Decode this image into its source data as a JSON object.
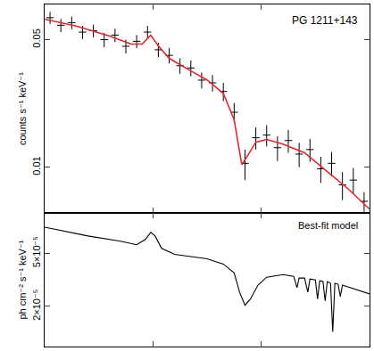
{
  "chart_data": [
    {
      "type": "scatter",
      "log": "y",
      "tick_labels": "y",
      "ylabel": "counts s⁻¹ keV⁻¹",
      "annotations": [
        "PG 1211+143"
      ],
      "xlim": [
        0,
        3
      ],
      "xticks": [
        1,
        2
      ],
      "ylim": [
        0.0056,
        0.078
      ],
      "yticks": [
        0.05,
        0.01
      ],
      "series": [
        {
          "type": "scatter",
          "marker": "cross",
          "color": "#000000",
          "x": [
            0.05,
            0.15,
            0.25,
            0.35,
            0.45,
            0.55,
            0.65,
            0.75,
            0.85,
            0.95,
            1.05,
            1.15,
            1.25,
            1.35,
            1.45,
            1.55,
            1.65,
            1.75,
            1.85,
            1.95,
            2.05,
            2.15,
            2.25,
            2.35,
            2.45,
            2.55,
            2.65,
            2.75,
            2.85,
            2.95
          ],
          "values": [
            0.066,
            0.06,
            0.062,
            0.055,
            0.056,
            0.05,
            0.053,
            0.046,
            0.049,
            0.055,
            0.044,
            0.041,
            0.036,
            0.035,
            0.03,
            0.029,
            0.026,
            0.02,
            0.0105,
            0.0145,
            0.015,
            0.0128,
            0.014,
            0.0118,
            0.0125,
            0.0098,
            0.0105,
            0.008,
            0.0085,
            0.0065
          ],
          "errors": [
            0.005,
            0.005,
            0.005,
            0.0045,
            0.0045,
            0.0045,
            0.0045,
            0.004,
            0.004,
            0.0045,
            0.004,
            0.004,
            0.0035,
            0.0035,
            0.003,
            0.003,
            0.003,
            0.0025,
            0.002,
            0.002,
            0.002,
            0.002,
            0.002,
            0.0018,
            0.0018,
            0.0016,
            0.0016,
            0.0014,
            0.0014,
            0.0008
          ]
        },
        {
          "type": "line",
          "color": "#e8262a",
          "x": [
            0,
            0.3,
            0.6,
            0.8,
            0.9,
            0.98,
            1.05,
            1.15,
            1.35,
            1.5,
            1.65,
            1.75,
            1.82,
            1.86,
            1.95,
            2.05,
            2.2,
            2.4,
            2.6,
            2.8,
            3.0
          ],
          "values": [
            0.0648,
            0.0592,
            0.0523,
            0.0473,
            0.0473,
            0.0529,
            0.0462,
            0.0395,
            0.0337,
            0.0301,
            0.0254,
            0.0182,
            0.01034,
            0.0112,
            0.0137,
            0.0142,
            0.0134,
            0.012,
            0.00956,
            0.00763,
            0.00589
          ]
        }
      ]
    },
    {
      "type": "line",
      "log": "y",
      "tick_labels": "y",
      "ylabel": "ph cm⁻² s⁻¹ keV⁻¹",
      "annotations": [
        "Best-fit model"
      ],
      "xlim": [
        0,
        3
      ],
      "xticks": [
        1,
        2
      ],
      "ylim": [
        1e-05,
        0.0001
      ],
      "yticks": [
        {
          "value": 5e-05,
          "label": "5×10⁻⁵"
        },
        {
          "value": 2e-05,
          "label": "2×10⁻⁵"
        }
      ],
      "series": [
        {
          "type": "line",
          "color": "#000000",
          "x": [
            0.0,
            0.4,
            0.7,
            0.85,
            0.93,
            0.98,
            1.02,
            1.08,
            1.2,
            1.5,
            1.65,
            1.75,
            1.8,
            1.85,
            1.9,
            1.97,
            2.05,
            2.2,
            2.3,
            2.33,
            2.35,
            2.4,
            2.43,
            2.45,
            2.5,
            2.52,
            2.54,
            2.57,
            2.59,
            2.61,
            2.64,
            2.66,
            2.68,
            2.71,
            2.73,
            2.75,
            2.8,
            2.9,
            3.0
          ],
          "values": [
            7.85e-05,
            6.74e-05,
            6.16e-05,
            5.8e-05,
            6.35e-05,
            7.17e-05,
            6.74e-05,
            5.45e-05,
            4.91e-05,
            4.55e-05,
            4.15e-05,
            3.57e-05,
            2.56e-05,
            2.04e-05,
            2.27e-05,
            2.89e-05,
            3.31e-05,
            3.46e-05,
            3.36e-05,
            2.76e-05,
            3.26e-05,
            3.26e-05,
            2.56e-05,
            3.21e-05,
            3.16e-05,
            2.27e-05,
            3.11e-05,
            3.07e-05,
            2.2e-05,
            3.07e-05,
            2.98e-05,
            1.29e-05,
            2.98e-05,
            2.93e-05,
            2.37e-05,
            2.89e-05,
            2.8e-05,
            2.64e-05,
            2.48e-05
          ]
        }
      ]
    }
  ]
}
